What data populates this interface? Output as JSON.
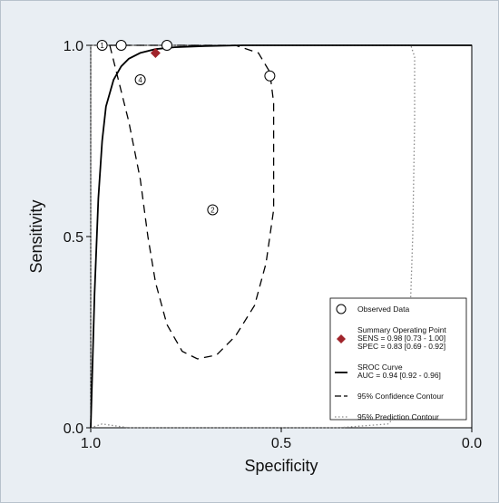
{
  "chart_data": {
    "type": "scatter",
    "xlabel": "Specificity",
    "ylabel": "Sensitivity",
    "xlim": [
      1.0,
      0.0
    ],
    "ylim": [
      0.0,
      1.0
    ],
    "x_ticks": [
      "1.0",
      "0.5",
      "0.0"
    ],
    "y_ticks": [
      "0.0",
      "0.5",
      "1.0"
    ],
    "x_tick_values": [
      1.0,
      0.5,
      0.0
    ],
    "y_tick_values": [
      0.0,
      0.5,
      1.0
    ],
    "observed_studies": [
      {
        "label": "1",
        "specificity": 0.97,
        "sensitivity": 1.0
      },
      {
        "label": "",
        "specificity": 0.92,
        "sensitivity": 1.0
      },
      {
        "label": "",
        "specificity": 0.8,
        "sensitivity": 1.0
      },
      {
        "label": "",
        "specificity": 0.53,
        "sensitivity": 0.92
      },
      {
        "label": "4",
        "specificity": 0.87,
        "sensitivity": 0.91
      },
      {
        "label": "2",
        "specificity": 0.68,
        "sensitivity": 0.57
      }
    ],
    "summary_point": {
      "specificity": 0.83,
      "sensitivity": 0.98
    },
    "sroc_curve": [
      [
        1.0,
        0.0
      ],
      [
        0.99,
        0.35
      ],
      [
        0.98,
        0.6
      ],
      [
        0.97,
        0.75
      ],
      [
        0.96,
        0.84
      ],
      [
        0.94,
        0.91
      ],
      [
        0.92,
        0.945
      ],
      [
        0.9,
        0.965
      ],
      [
        0.87,
        0.98
      ],
      [
        0.83,
        0.99
      ],
      [
        0.78,
        0.995
      ],
      [
        0.7,
        0.998
      ],
      [
        0.6,
        1.0
      ],
      [
        0.0,
        1.0
      ]
    ],
    "confidence_contour": [
      [
        0.95,
        1.0
      ],
      [
        0.93,
        0.92
      ],
      [
        0.9,
        0.8
      ],
      [
        0.87,
        0.65
      ],
      [
        0.85,
        0.5
      ],
      [
        0.83,
        0.38
      ],
      [
        0.8,
        0.27
      ],
      [
        0.76,
        0.2
      ],
      [
        0.72,
        0.18
      ],
      [
        0.67,
        0.19
      ],
      [
        0.62,
        0.24
      ],
      [
        0.57,
        0.32
      ],
      [
        0.54,
        0.43
      ],
      [
        0.52,
        0.57
      ],
      [
        0.52,
        0.72
      ],
      [
        0.52,
        0.85
      ],
      [
        0.53,
        0.93
      ],
      [
        0.56,
        0.98
      ],
      [
        0.62,
        1.0
      ],
      [
        0.7,
        1.0
      ],
      [
        0.8,
        1.0
      ],
      [
        0.9,
        1.0
      ],
      [
        0.95,
        1.0
      ]
    ],
    "prediction_contour": [
      [
        1.0,
        0.0
      ],
      [
        1.0,
        0.3
      ],
      [
        1.0,
        0.7
      ],
      [
        1.0,
        1.0
      ],
      [
        0.8,
        1.0
      ],
      [
        0.5,
        1.0
      ],
      [
        0.3,
        1.0
      ],
      [
        0.16,
        1.0
      ],
      [
        0.15,
        0.97
      ],
      [
        0.15,
        0.8
      ],
      [
        0.155,
        0.5
      ],
      [
        0.165,
        0.2
      ],
      [
        0.18,
        0.05
      ],
      [
        0.22,
        0.01
      ],
      [
        0.35,
        0.0
      ],
      [
        0.6,
        0.0
      ],
      [
        0.9,
        0.0
      ],
      [
        0.97,
        0.01
      ],
      [
        1.0,
        0.0
      ]
    ],
    "legend": {
      "placement": "bottom-right",
      "entries": [
        {
          "symbol": "circle",
          "lines": [
            "Observed Data"
          ]
        },
        {
          "symbol": "diamond",
          "lines": [
            "Summary Operating Point",
            "SENS = 0.98 [0.73 - 1.00]",
            "SPEC = 0.83 [0.69 - 0.92]"
          ]
        },
        {
          "symbol": "solid",
          "lines": [
            "SROC Curve",
            "AUC = 0.94 [0.92 - 0.96]"
          ]
        },
        {
          "symbol": "dashed",
          "lines": [
            "95% Confidence Contour"
          ]
        },
        {
          "symbol": "dotted",
          "lines": [
            "95% Prediction Contour"
          ]
        }
      ]
    },
    "colors": {
      "background": "#e9eef3",
      "plot": "#ffffff",
      "summary": "#a0242b",
      "line": "#000000",
      "prediction": "#8a8a8a"
    }
  }
}
